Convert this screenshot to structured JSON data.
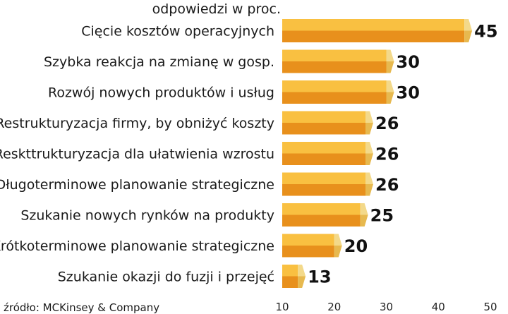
{
  "chart_data": {
    "type": "bar",
    "orientation": "horizontal",
    "subtitle": "odpowiedzi w proc.",
    "source": "źródło: MCKinsey & Company",
    "categories": [
      "Cięcie kosztów operacyjnych",
      "Szybka reakcja na zmianę w gosp.",
      "Rozwój nowych produktów i usług",
      "Restrukturyzacja firmy, by obniżyć koszty",
      "Reskttrukturyzacja dla ułatwienia wzrostu",
      "Długoterminowe planowanie strategiczne",
      "Szukanie nowych rynków na produkty",
      "Krótkoterminowe planowanie strategiczne",
      "Szukanie okazji do fuzji i przejęć"
    ],
    "values": [
      45,
      30,
      30,
      26,
      26,
      26,
      25,
      20,
      13
    ],
    "xlim": [
      10,
      50
    ],
    "xticks": [
      10,
      20,
      30,
      40,
      50
    ],
    "grid": false,
    "colors": {
      "bar_top": "#f9c041",
      "bar_bottom": "#e8901c",
      "bar_end": "#f3d98a",
      "bar_end_dark": "#e7b94f"
    }
  }
}
